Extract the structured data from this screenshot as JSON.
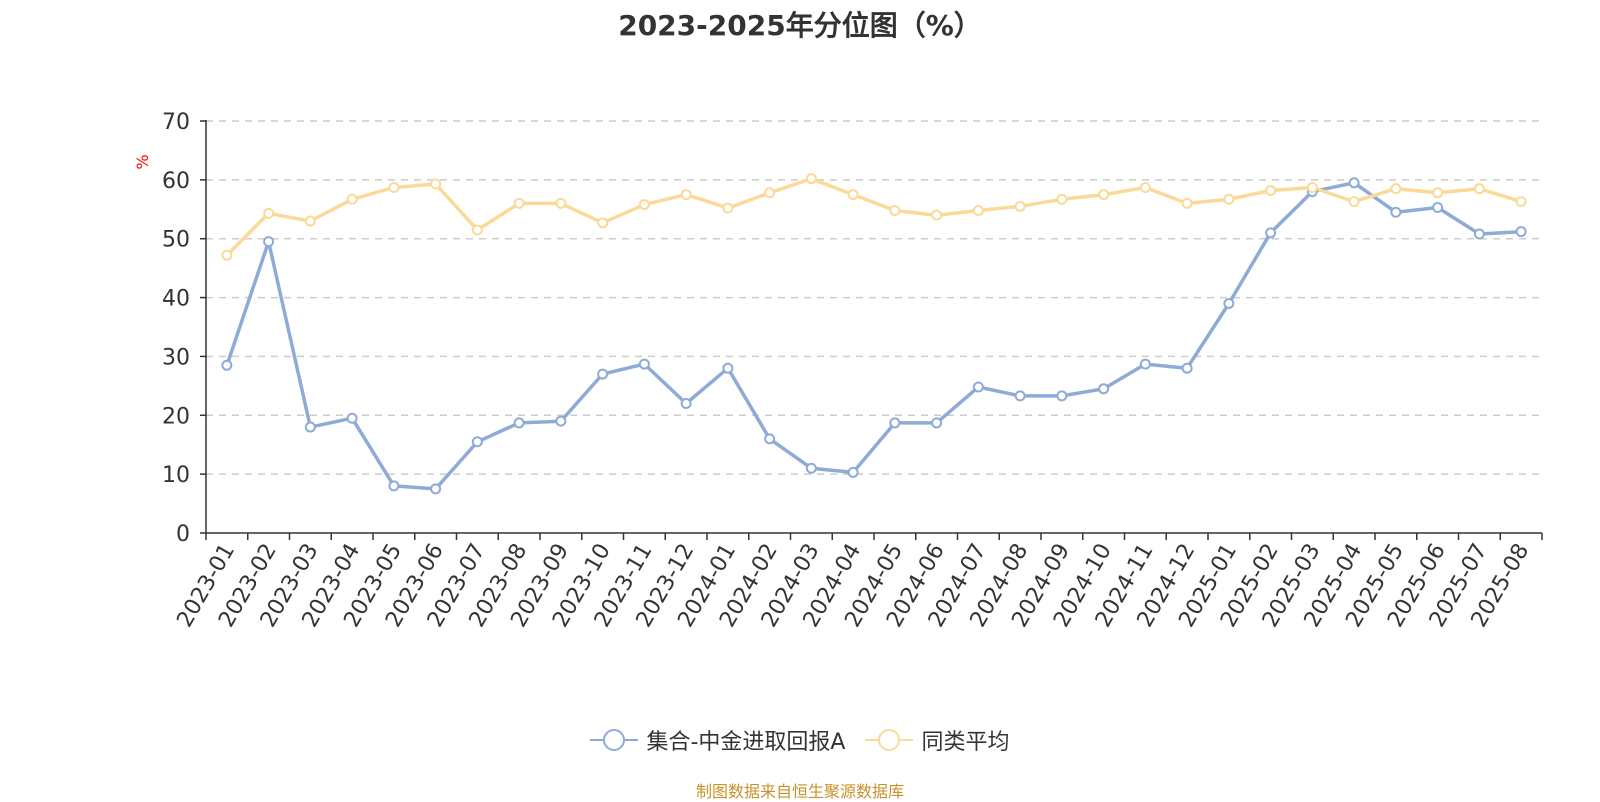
{
  "chart_data": {
    "type": "line",
    "title": "2023-2025年分位图（%）",
    "ylabel": "%",
    "ylim": [
      0,
      70
    ],
    "yticks": [
      0,
      10,
      20,
      30,
      40,
      50,
      60,
      70
    ],
    "grid": true,
    "legend_position": "bottom",
    "categories": [
      "2023-01",
      "2023-02",
      "2023-03",
      "2023-04",
      "2023-05",
      "2023-06",
      "2023-07",
      "2023-08",
      "2023-09",
      "2023-10",
      "2023-11",
      "2023-12",
      "2024-01",
      "2024-02",
      "2024-03",
      "2024-04",
      "2024-05",
      "2024-06",
      "2024-07",
      "2024-08",
      "2024-09",
      "2024-10",
      "2024-11",
      "2024-12",
      "2025-01",
      "2025-02",
      "2025-03",
      "2025-04",
      "2025-05",
      "2025-06",
      "2025-07",
      "2025-08"
    ],
    "series": [
      {
        "name": "集合-中金进取回报A",
        "color": "#8eabd8",
        "values": [
          28.5,
          49.5,
          18,
          19.5,
          8,
          7.5,
          15.5,
          18.7,
          19,
          27,
          28.7,
          22,
          28,
          16,
          11,
          10.3,
          18.7,
          18.7,
          24.8,
          23.3,
          23.3,
          24.5,
          28.7,
          28,
          39,
          51,
          58,
          59.5,
          54.5,
          55.3,
          50.8,
          51.2
        ]
      },
      {
        "name": "同类平均",
        "color": "#fbd999",
        "values": [
          47.2,
          54.3,
          53,
          56.7,
          58.7,
          59.3,
          51.5,
          56,
          56,
          52.7,
          55.8,
          57.5,
          55.2,
          57.8,
          60.2,
          57.5,
          54.8,
          54,
          54.8,
          55.5,
          56.7,
          57.5,
          58.7,
          56,
          56.7,
          58.2,
          58.7,
          56.3,
          58.5,
          57.8,
          58.5,
          56.3
        ]
      }
    ]
  },
  "footer": {
    "source": "制图数据来自恒生聚源数据库"
  }
}
